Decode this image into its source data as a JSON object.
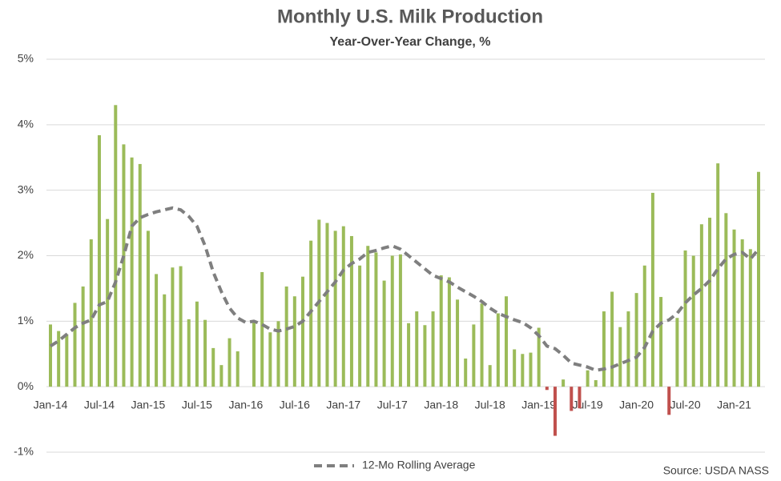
{
  "chart_data": {
    "type": "bar",
    "title": "Monthly U.S. Milk Production",
    "subtitle": "Year-Over-Year Change, %",
    "source": "Source: USDA NASS",
    "categories": [
      "Jan-14",
      null,
      null,
      null,
      null,
      null,
      "Jul-14",
      null,
      null,
      null,
      null,
      null,
      "Jan-15",
      null,
      null,
      null,
      null,
      null,
      "Jul-15",
      null,
      null,
      null,
      null,
      null,
      "Jan-16",
      null,
      null,
      null,
      null,
      null,
      "Jul-16",
      null,
      null,
      null,
      null,
      null,
      "Jan-17",
      null,
      null,
      null,
      null,
      null,
      "Jul-17",
      null,
      null,
      null,
      null,
      null,
      "Jan-18",
      null,
      null,
      null,
      null,
      null,
      "Jul-18",
      null,
      null,
      null,
      null,
      null,
      "Jan-19",
      null,
      null,
      null,
      null,
      null,
      "Jul-19",
      null,
      null,
      null,
      null,
      null,
      "Jan-20",
      null,
      null,
      null,
      null,
      null,
      "Jul-20",
      null,
      null,
      null,
      null,
      null,
      "Jan-21",
      null,
      null,
      null
    ],
    "series": [
      {
        "type": "bar",
        "color": "#9bbb59",
        "negative_color": "#c0504d",
        "values": [
          0.95,
          0.85,
          0.8,
          1.28,
          1.53,
          2.25,
          3.84,
          2.56,
          4.3,
          3.7,
          3.5,
          3.4,
          2.38,
          1.72,
          1.41,
          1.82,
          1.84,
          1.03,
          1.3,
          1.02,
          0.59,
          0.33,
          0.74,
          0.54,
          0,
          1.0,
          1.75,
          0.83,
          1.0,
          1.53,
          1.38,
          1.68,
          2.23,
          2.55,
          2.5,
          2.38,
          2.45,
          2.3,
          1.85,
          2.15,
          2.05,
          1.62,
          2.0,
          2.02,
          0.97,
          1.15,
          0.94,
          1.15,
          1.7,
          1.67,
          1.33,
          0.43,
          0.95,
          1.27,
          0.33,
          1.12,
          1.38,
          0.57,
          0.5,
          0.52,
          0.9,
          -0.05,
          -0.75,
          0.11,
          -0.37,
          -0.33,
          0.25,
          0.1,
          1.15,
          1.45,
          0.91,
          1.15,
          1.43,
          1.85,
          2.96,
          1.37,
          -0.43,
          1.05,
          2.08,
          2.0,
          2.48,
          2.58,
          3.41,
          2.65,
          2.4,
          2.25,
          2.1,
          3.28
        ]
      },
      {
        "type": "line",
        "name": "12-Mo Rolling Average",
        "color": "#7f7f7f",
        "dashed": true,
        "values": [
          0.62,
          0.7,
          0.8,
          0.9,
          0.97,
          1.02,
          1.25,
          1.3,
          1.6,
          2.0,
          2.45,
          2.58,
          2.63,
          2.67,
          2.7,
          2.73,
          2.7,
          2.6,
          2.45,
          2.15,
          1.75,
          1.45,
          1.2,
          1.05,
          0.98,
          1.0,
          0.95,
          0.88,
          0.85,
          0.88,
          0.92,
          1.0,
          1.15,
          1.3,
          1.45,
          1.6,
          1.78,
          1.88,
          1.95,
          2.05,
          2.08,
          2.12,
          2.15,
          2.1,
          2.0,
          1.9,
          1.8,
          1.7,
          1.65,
          1.6,
          1.52,
          1.45,
          1.38,
          1.3,
          1.2,
          1.12,
          1.07,
          1.02,
          0.98,
          0.9,
          0.78,
          0.62,
          0.58,
          0.48,
          0.36,
          0.33,
          0.3,
          0.25,
          0.27,
          0.3,
          0.35,
          0.4,
          0.45,
          0.6,
          0.85,
          0.97,
          1.02,
          1.12,
          1.28,
          1.4,
          1.5,
          1.62,
          1.8,
          1.95,
          2.02,
          2.05,
          1.95,
          2.1
        ]
      }
    ],
    "ylim": [
      -1,
      5
    ],
    "yticks": [
      {
        "value": -1,
        "label": "-1%"
      },
      {
        "value": 0,
        "label": "0%"
      },
      {
        "value": 1,
        "label": "1%"
      },
      {
        "value": 2,
        "label": "2%"
      },
      {
        "value": 3,
        "label": "3%"
      },
      {
        "value": 4,
        "label": "4%"
      },
      {
        "value": 5,
        "label": "5%"
      }
    ],
    "grid": true,
    "legend": "bottom"
  }
}
